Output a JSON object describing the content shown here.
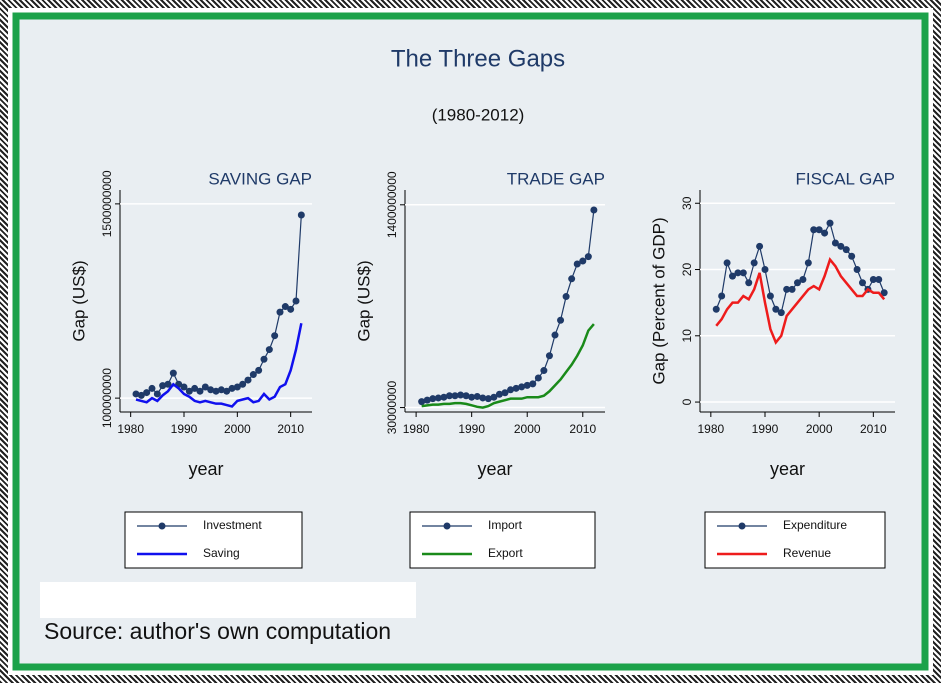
{
  "title": "The Three Gaps",
  "subtitle": "(1980-2012)",
  "source": "Source: author's own computation",
  "chart_data": [
    {
      "type": "line",
      "title": "SAVING GAP",
      "xlabel": "year",
      "ylabel": "Gap (US$)",
      "grid": true,
      "x": [
        1981,
        1982,
        1983,
        1984,
        1985,
        1986,
        1987,
        1988,
        1989,
        1990,
        1991,
        1992,
        1993,
        1994,
        1995,
        1996,
        1997,
        1998,
        1999,
        2000,
        2001,
        2002,
        2003,
        2004,
        2005,
        2006,
        2007,
        2008,
        2009,
        2010,
        2011,
        2012
      ],
      "xlim": [
        1978,
        2014
      ],
      "xticks": [
        1980,
        1990,
        2000,
        2010
      ],
      "ylim": [
        0,
        1600000000
      ],
      "yticks": [
        100000000,
        1500000000
      ],
      "series": [
        {
          "name": "Investment",
          "color": "#1f3a68",
          "markers": true,
          "values": [
            130000000,
            120000000,
            140000000,
            170000000,
            130000000,
            190000000,
            200000000,
            280000000,
            200000000,
            180000000,
            150000000,
            170000000,
            150000000,
            180000000,
            160000000,
            150000000,
            160000000,
            150000000,
            170000000,
            180000000,
            200000000,
            230000000,
            270000000,
            300000000,
            380000000,
            450000000,
            550000000,
            720000000,
            760000000,
            740000000,
            800000000,
            1420000000
          ]
        },
        {
          "name": "Saving",
          "color": "#1010ee",
          "markers": false,
          "values": [
            90000000,
            80000000,
            70000000,
            100000000,
            80000000,
            120000000,
            150000000,
            200000000,
            170000000,
            130000000,
            110000000,
            80000000,
            70000000,
            80000000,
            70000000,
            60000000,
            60000000,
            50000000,
            40000000,
            80000000,
            90000000,
            100000000,
            70000000,
            80000000,
            130000000,
            90000000,
            110000000,
            180000000,
            200000000,
            300000000,
            450000000,
            640000000
          ]
        }
      ]
    },
    {
      "type": "line",
      "title": "TRADE GAP",
      "xlabel": "year",
      "ylabel": "Gap (US$)",
      "grid": true,
      "x": [
        1981,
        1982,
        1983,
        1984,
        1985,
        1986,
        1987,
        1988,
        1989,
        1990,
        1991,
        1992,
        1993,
        1994,
        1995,
        1996,
        1997,
        1998,
        1999,
        2000,
        2001,
        2002,
        2003,
        2004,
        2005,
        2006,
        2007,
        2008,
        2009,
        2010,
        2011,
        2012
      ],
      "xlim": [
        1978,
        2014
      ],
      "xticks": [
        1980,
        1990,
        2000,
        2010
      ],
      "ylim": [
        0,
        1500000000
      ],
      "yticks": [
        30000000,
        1400000000
      ],
      "series": [
        {
          "name": "Import",
          "color": "#1f3a68",
          "markers": true,
          "values": [
            70000000,
            80000000,
            90000000,
            95000000,
            100000000,
            110000000,
            110000000,
            115000000,
            110000000,
            100000000,
            105000000,
            95000000,
            90000000,
            100000000,
            120000000,
            130000000,
            150000000,
            160000000,
            170000000,
            180000000,
            190000000,
            230000000,
            280000000,
            380000000,
            520000000,
            620000000,
            780000000,
            900000000,
            1000000000,
            1020000000,
            1050000000,
            1365000000
          ]
        },
        {
          "name": "Export",
          "color": "#1a8a1a",
          "markers": false,
          "values": [
            40000000,
            45000000,
            50000000,
            50000000,
            55000000,
            55000000,
            60000000,
            60000000,
            55000000,
            45000000,
            35000000,
            30000000,
            40000000,
            60000000,
            70000000,
            80000000,
            90000000,
            90000000,
            90000000,
            100000000,
            100000000,
            100000000,
            110000000,
            140000000,
            180000000,
            220000000,
            270000000,
            320000000,
            380000000,
            450000000,
            550000000,
            594000000
          ]
        }
      ]
    },
    {
      "type": "line",
      "title": "FISCAL GAP",
      "xlabel": "year",
      "ylabel": "Gap (Percent of GDP)",
      "grid": true,
      "x": [
        1981,
        1982,
        1983,
        1984,
        1985,
        1986,
        1987,
        1988,
        1989,
        1990,
        1991,
        1992,
        1993,
        1994,
        1995,
        1996,
        1997,
        1998,
        1999,
        2000,
        2001,
        2002,
        2003,
        2004,
        2005,
        2006,
        2007,
        2008,
        2009,
        2010,
        2011,
        2012
      ],
      "xlim": [
        1978,
        2014
      ],
      "xticks": [
        1980,
        1990,
        2000,
        2010
      ],
      "ylim": [
        -1.5,
        32
      ],
      "yticks": [
        0,
        10,
        20,
        30
      ],
      "series": [
        {
          "name": "Expenditure",
          "color": "#1f3a68",
          "markers": true,
          "values": [
            14,
            16,
            21,
            19,
            19.5,
            19.5,
            18,
            21,
            23.5,
            20,
            16,
            14,
            13.5,
            17,
            17,
            18,
            18.5,
            21,
            26,
            26,
            25.5,
            27,
            24,
            23.5,
            23,
            22,
            20,
            18,
            17,
            18.5,
            18.5,
            16.5
          ]
        },
        {
          "name": "Revenue",
          "color": "#ee1c1c",
          "markers": false,
          "values": [
            11.5,
            12.5,
            14,
            15,
            15,
            16,
            15.5,
            17,
            19.5,
            15,
            11,
            9,
            10,
            13,
            14,
            15,
            16,
            17,
            17.5,
            17,
            19,
            21.5,
            20.5,
            19,
            18,
            17,
            16,
            16,
            17,
            16.5,
            16.5,
            15.5
          ]
        }
      ]
    }
  ]
}
